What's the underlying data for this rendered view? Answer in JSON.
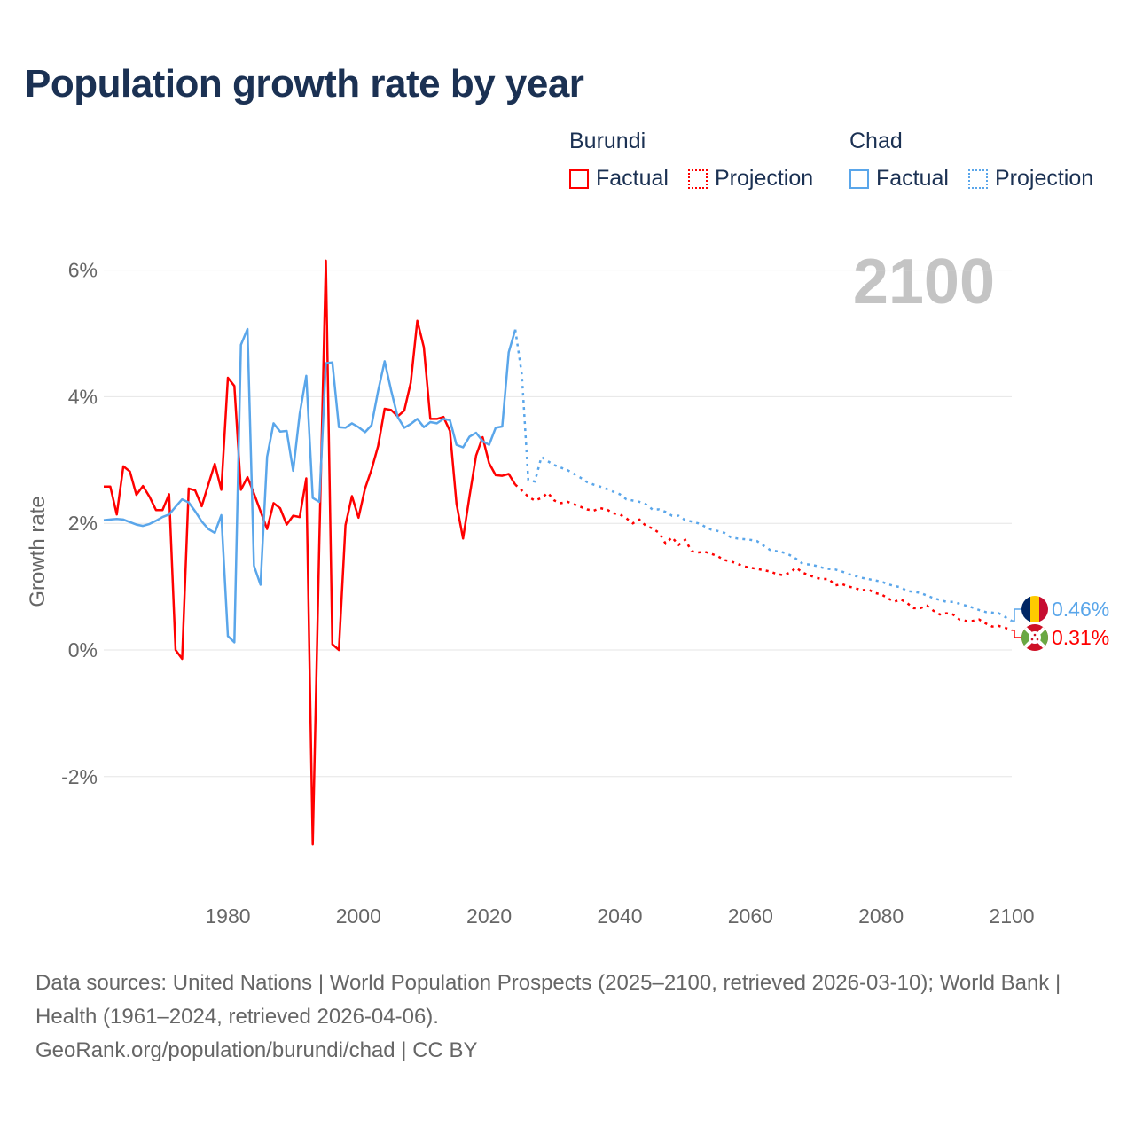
{
  "title": "Population growth rate by year",
  "legend": {
    "groups": [
      {
        "name": "Burundi",
        "color": "#ff0000",
        "factual": "Factual",
        "projection": "Projection"
      },
      {
        "name": "Chad",
        "color": "#5aa6ea",
        "factual": "Factual",
        "projection": "Projection"
      }
    ]
  },
  "footer": {
    "line1": "Data sources: United Nations | World Population Prospects (2025–2100, retrieved 2026-03-10); World Bank | Health (1961–2024, retrieved 2026-04-06).",
    "line2": "GeoRank.org/population/burundi/chad | CC BY"
  },
  "chart_data": {
    "type": "line",
    "title": "Population growth rate by year",
    "ylabel": "Growth rate",
    "xlabel": "",
    "current_year_label": "2100",
    "xlim": [
      1961,
      2100
    ],
    "ylim": [
      -3.6,
      6.5
    ],
    "x_ticks": [
      1980,
      2000,
      2020,
      2040,
      2060,
      2080,
      2100
    ],
    "y_ticks": [
      -2,
      0,
      2,
      4,
      6
    ],
    "y_tick_labels": [
      "-2%",
      "0%",
      "2%",
      "4%",
      "6%"
    ],
    "grid": true,
    "legend_position": "top-right",
    "series": [
      {
        "name": "Burundi",
        "color": "#ff0000",
        "end_label": "0.31%",
        "factual_start": 1961,
        "factual": [
          2.58,
          2.58,
          2.14,
          2.9,
          2.82,
          2.45,
          2.59,
          2.42,
          2.21,
          2.21,
          2.46,
          0.0,
          -0.14,
          2.55,
          2.52,
          2.27,
          2.61,
          2.94,
          2.53,
          4.3,
          4.17,
          2.53,
          2.73,
          2.47,
          2.19,
          1.91,
          2.32,
          2.24,
          1.98,
          2.12,
          2.1,
          2.71,
          -3.07,
          1.7,
          6.15,
          0.09,
          0.0,
          1.97,
          2.43,
          2.09,
          2.55,
          2.85,
          3.22,
          3.81,
          3.79,
          3.69,
          3.78,
          4.22,
          5.2,
          4.78,
          3.65,
          3.65,
          3.68,
          3.46,
          2.31,
          1.76,
          2.43,
          3.07,
          3.36,
          2.95,
          2.76,
          2.75,
          2.78,
          2.61
        ],
        "projection_start": 2025,
        "projection": [
          2.52,
          2.42,
          2.36,
          2.4,
          2.48,
          2.36,
          2.32,
          2.34,
          2.3,
          2.26,
          2.22,
          2.2,
          2.24,
          2.22,
          2.16,
          2.14,
          2.08,
          2.0,
          2.06,
          1.96,
          1.92,
          1.85,
          1.68,
          1.78,
          1.66,
          1.74,
          1.56,
          1.54,
          1.55,
          1.52,
          1.48,
          1.42,
          1.4,
          1.36,
          1.32,
          1.3,
          1.28,
          1.26,
          1.24,
          1.2,
          1.18,
          1.22,
          1.3,
          1.22,
          1.18,
          1.14,
          1.12,
          1.12,
          1.02,
          1.04,
          1.0,
          0.98,
          0.94,
          0.96,
          0.9,
          0.88,
          0.82,
          0.76,
          0.8,
          0.74,
          0.66,
          0.66,
          0.7,
          0.62,
          0.56,
          0.58,
          0.56,
          0.48,
          0.46,
          0.46,
          0.48,
          0.42,
          0.37,
          0.38,
          0.35,
          0.31
        ]
      },
      {
        "name": "Chad",
        "color": "#5aa6ea",
        "end_label": "0.46%",
        "factual_start": 1961,
        "factual": [
          2.05,
          2.06,
          2.07,
          2.06,
          2.02,
          1.98,
          1.96,
          1.99,
          2.04,
          2.1,
          2.14,
          2.26,
          2.38,
          2.33,
          2.19,
          2.03,
          1.91,
          1.85,
          2.13,
          0.22,
          0.12,
          4.82,
          5.07,
          1.33,
          1.03,
          3.05,
          3.58,
          3.45,
          3.46,
          2.83,
          3.73,
          4.33,
          2.4,
          2.34,
          4.53,
          4.54,
          3.52,
          3.51,
          3.58,
          3.52,
          3.44,
          3.55,
          4.09,
          4.56,
          4.1,
          3.68,
          3.51,
          3.57,
          3.65,
          3.52,
          3.6,
          3.58,
          3.65,
          3.63,
          3.24,
          3.2,
          3.37,
          3.43,
          3.3,
          3.24,
          3.51,
          3.53,
          4.7,
          5.06
        ],
        "projection_start": 2025,
        "projection": [
          4.35,
          2.68,
          2.66,
          3.05,
          2.98,
          2.92,
          2.88,
          2.84,
          2.78,
          2.72,
          2.65,
          2.61,
          2.58,
          2.54,
          2.5,
          2.46,
          2.38,
          2.36,
          2.34,
          2.3,
          2.22,
          2.22,
          2.18,
          2.12,
          2.12,
          2.05,
          2.03,
          2.0,
          1.95,
          1.9,
          1.88,
          1.85,
          1.78,
          1.76,
          1.75,
          1.74,
          1.72,
          1.65,
          1.58,
          1.56,
          1.54,
          1.5,
          1.44,
          1.36,
          1.35,
          1.33,
          1.3,
          1.28,
          1.27,
          1.24,
          1.2,
          1.17,
          1.14,
          1.12,
          1.1,
          1.08,
          1.04,
          1.01,
          0.99,
          0.93,
          0.92,
          0.9,
          0.86,
          0.82,
          0.79,
          0.76,
          0.76,
          0.73,
          0.7,
          0.67,
          0.63,
          0.6,
          0.59,
          0.58,
          0.52,
          0.46
        ]
      }
    ]
  }
}
